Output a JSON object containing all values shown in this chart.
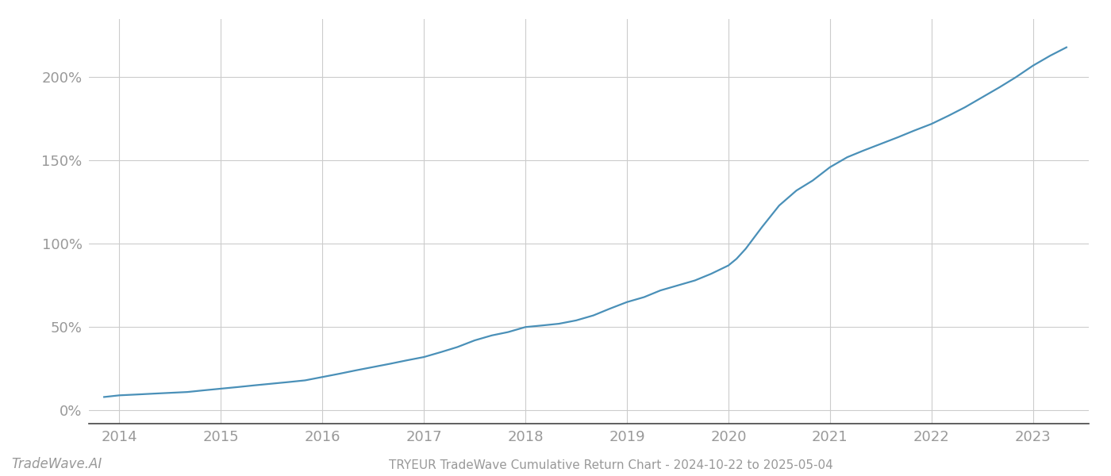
{
  "title": "TRYEUR TradeWave Cumulative Return Chart - 2024-10-22 to 2025-05-04",
  "watermark": "TradeWave.AI",
  "line_color": "#4a90b8",
  "line_width": 1.6,
  "background_color": "#ffffff",
  "grid_color": "#cccccc",
  "x_years": [
    2013.85,
    2014.0,
    2014.17,
    2014.33,
    2014.5,
    2014.67,
    2014.83,
    2015.0,
    2015.17,
    2015.33,
    2015.5,
    2015.67,
    2015.83,
    2016.0,
    2016.17,
    2016.33,
    2016.5,
    2016.67,
    2016.83,
    2017.0,
    2017.17,
    2017.33,
    2017.5,
    2017.67,
    2017.83,
    2018.0,
    2018.17,
    2018.33,
    2018.5,
    2018.67,
    2018.83,
    2019.0,
    2019.17,
    2019.33,
    2019.5,
    2019.67,
    2019.83,
    2020.0,
    2020.08,
    2020.17,
    2020.33,
    2020.5,
    2020.67,
    2020.83,
    2021.0,
    2021.17,
    2021.33,
    2021.5,
    2021.67,
    2021.83,
    2022.0,
    2022.17,
    2022.33,
    2022.5,
    2022.67,
    2022.83,
    2023.0,
    2023.17,
    2023.33
  ],
  "y_values": [
    8,
    9,
    9.5,
    10,
    10.5,
    11,
    12,
    13,
    14,
    15,
    16,
    17,
    18,
    20,
    22,
    24,
    26,
    28,
    30,
    32,
    35,
    38,
    42,
    45,
    47,
    50,
    51,
    52,
    54,
    57,
    61,
    65,
    68,
    72,
    75,
    78,
    82,
    87,
    91,
    97,
    110,
    123,
    132,
    138,
    146,
    152,
    156,
    160,
    164,
    168,
    172,
    177,
    182,
    188,
    194,
    200,
    207,
    213,
    218
  ],
  "xlim": [
    2013.7,
    2023.55
  ],
  "ylim": [
    -8,
    235
  ],
  "xtick_years": [
    2014,
    2015,
    2016,
    2017,
    2018,
    2019,
    2020,
    2021,
    2022,
    2023
  ],
  "ytick_values": [
    0,
    50,
    100,
    150,
    200
  ],
  "ytick_labels": [
    "0%",
    "50%",
    "100%",
    "150%",
    "200%"
  ],
  "tick_color": "#999999",
  "tick_fontsize": 13,
  "title_fontsize": 11,
  "watermark_fontsize": 12
}
